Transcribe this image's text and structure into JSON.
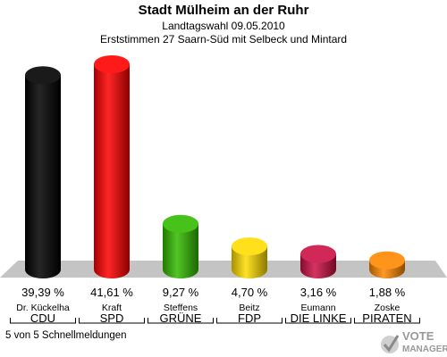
{
  "header": {
    "title": "Stadt Mülheim an der Ruhr",
    "subtitle": "Landtagswahl 09.05.2010",
    "subtitle2": "Erststimmen 27 Saarn-Süd mit Selbeck und Mintard"
  },
  "chart_data": {
    "type": "bar",
    "categories": [
      "CDU",
      "SPD",
      "GRÜNE",
      "FDP",
      "DIE LINKE",
      "PIRATEN"
    ],
    "candidates": [
      "Dr. Kückelha",
      "Kraft",
      "Steffens",
      "Beitz",
      "Eumann",
      "Zoske"
    ],
    "values": [
      39.39,
      41.61,
      9.27,
      4.7,
      3.16,
      1.88
    ],
    "value_labels": [
      "39,39 %",
      "41,61 %",
      "9,27 %",
      "4,70 %",
      "3,16 %",
      "1,88 %"
    ],
    "colors": [
      "#000000",
      "#ff0000",
      "#33bb00",
      "#ffdd00",
      "#cc1144",
      "#ff8800"
    ],
    "ylim": [
      0,
      41.61
    ]
  },
  "footer": {
    "text": "5 von 5 Schnellmeldungen"
  },
  "logo": {
    "text_top": "VOTE",
    "text_bottom": "MANAGER"
  }
}
